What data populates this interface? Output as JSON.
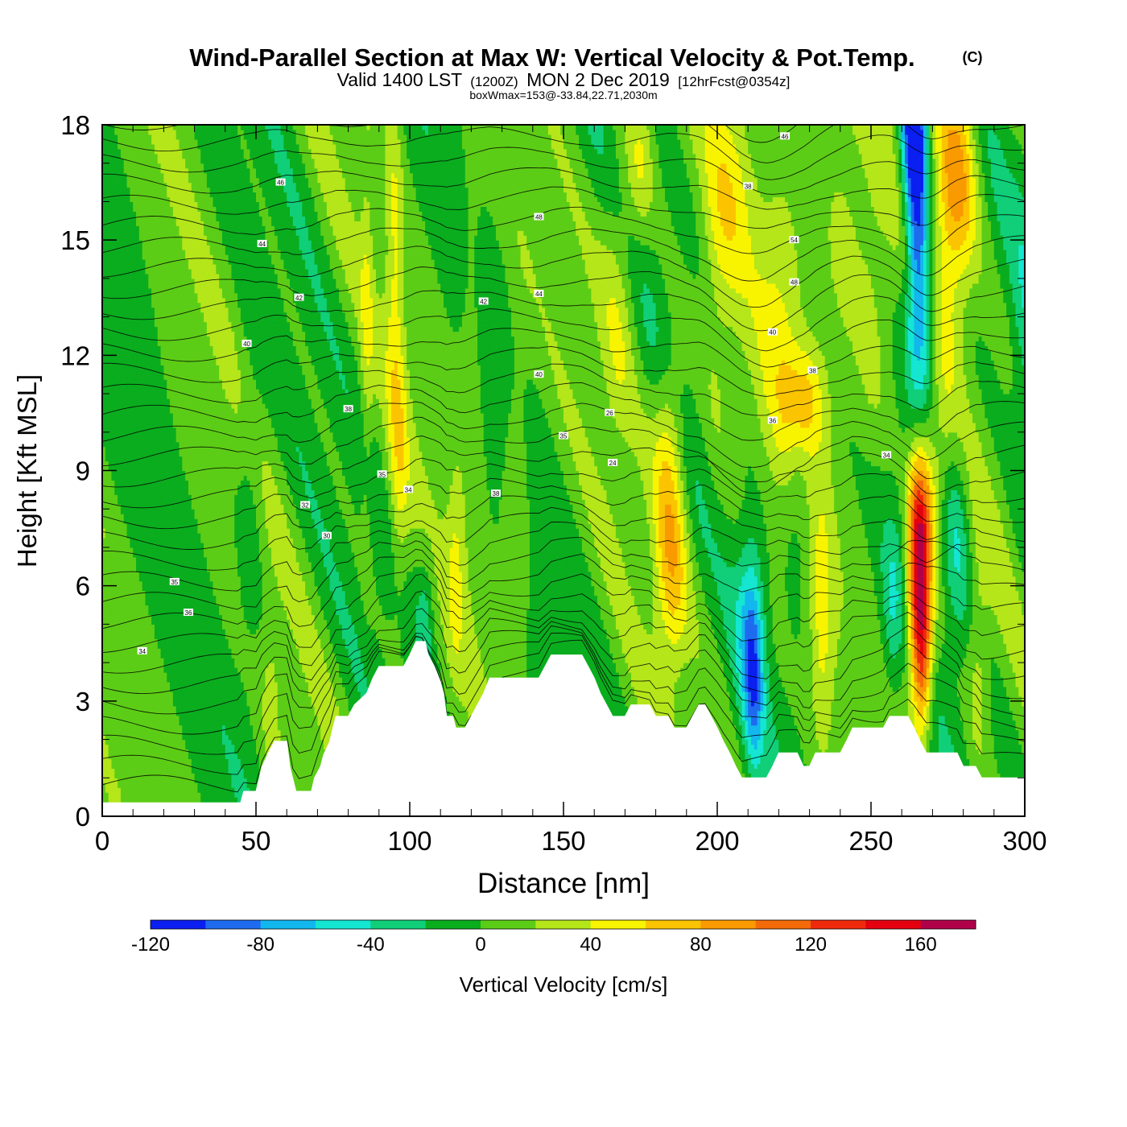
{
  "title": {
    "main": "Wind-Parallel Section at Max W: Vertical Velocity & Pot.Temp.",
    "copyright": "(C)",
    "valid_prefix": "Valid 1400 LST",
    "valid_utc": "(1200Z)",
    "valid_date": "MON 2 Dec 2019",
    "forecast": "[12hrFcst@0354z]",
    "box_info": "boxWmax=153@-33.84,22.71,2030m"
  },
  "chart_data": {
    "type": "heatmap",
    "xlabel": "Distance [nm]",
    "ylabel": "Height [Kft MSL]",
    "xlim": [
      0,
      300
    ],
    "ylim": [
      0,
      18
    ],
    "x_ticks": [
      "0",
      "50",
      "100",
      "150",
      "200",
      "250",
      "300"
    ],
    "y_ticks": [
      "0",
      "3",
      "6",
      "9",
      "12",
      "15",
      "18"
    ],
    "colorbar": {
      "label": "Vertical Velocity [cm/s]",
      "tick_labels": [
        "-120",
        "-80",
        "-40",
        "0",
        "40",
        "80",
        "120",
        "160"
      ],
      "bounds": [
        -120,
        180
      ],
      "step": 20,
      "colors": [
        "#0a1ff0",
        "#1e6bf0",
        "#12b7ee",
        "#14e6d2",
        "#10cf78",
        "#0aad1e",
        "#5ccd16",
        "#b4e61a",
        "#f8f400",
        "#fbc400",
        "#f89a00",
        "#f46a08",
        "#ef2a0c",
        "#e4000f",
        "#b0004a"
      ]
    },
    "terrain": [
      [
        0,
        0.35
      ],
      [
        10,
        0.35
      ],
      [
        20,
        0.35
      ],
      [
        30,
        0.35
      ],
      [
        40,
        0.35
      ],
      [
        45,
        0.35
      ],
      [
        46,
        0.65
      ],
      [
        50,
        0.65
      ],
      [
        52,
        1.3
      ],
      [
        54,
        1.65
      ],
      [
        56,
        1.95
      ],
      [
        60,
        1.95
      ],
      [
        61,
        1.3
      ],
      [
        63,
        0.65
      ],
      [
        68,
        0.65
      ],
      [
        69,
        1.0
      ],
      [
        71,
        1.3
      ],
      [
        72,
        1.6
      ],
      [
        74,
        1.95
      ],
      [
        75,
        2.3
      ],
      [
        76,
        2.6
      ],
      [
        80,
        2.6
      ],
      [
        82,
        2.9
      ],
      [
        86,
        3.2
      ],
      [
        88,
        3.6
      ],
      [
        90,
        3.9
      ],
      [
        98,
        3.9
      ],
      [
        100,
        4.2
      ],
      [
        102,
        4.55
      ],
      [
        105,
        4.55
      ],
      [
        106,
        4.2
      ],
      [
        108,
        3.9
      ],
      [
        110,
        3.5
      ],
      [
        111,
        3.2
      ],
      [
        112,
        2.6
      ],
      [
        114,
        2.6
      ],
      [
        115,
        2.3
      ],
      [
        118,
        2.3
      ],
      [
        120,
        2.6
      ],
      [
        122,
        2.9
      ],
      [
        124,
        3.2
      ],
      [
        126,
        3.6
      ],
      [
        142,
        3.6
      ],
      [
        144,
        3.9
      ],
      [
        146,
        4.2
      ],
      [
        156,
        4.2
      ],
      [
        158,
        3.9
      ],
      [
        160,
        3.6
      ],
      [
        162,
        3.2
      ],
      [
        164,
        2.9
      ],
      [
        166,
        2.6
      ],
      [
        168,
        2.6
      ],
      [
        170,
        2.6
      ],
      [
        172,
        2.9
      ],
      [
        178,
        2.9
      ],
      [
        180,
        2.6
      ],
      [
        184,
        2.6
      ],
      [
        186,
        2.3
      ],
      [
        190,
        2.3
      ],
      [
        192,
        2.6
      ],
      [
        194,
        2.9
      ],
      [
        196,
        2.9
      ],
      [
        198,
        2.6
      ],
      [
        200,
        2.3
      ],
      [
        202,
        1.95
      ],
      [
        204,
        1.65
      ],
      [
        206,
        1.3
      ],
      [
        208,
        1.0
      ],
      [
        216,
        1.0
      ],
      [
        218,
        1.3
      ],
      [
        220,
        1.65
      ],
      [
        226,
        1.65
      ],
      [
        228,
        1.3
      ],
      [
        230,
        1.3
      ],
      [
        232,
        1.65
      ],
      [
        240,
        1.65
      ],
      [
        242,
        1.95
      ],
      [
        244,
        2.3
      ],
      [
        254,
        2.3
      ],
      [
        256,
        2.6
      ],
      [
        262,
        2.6
      ],
      [
        264,
        2.3
      ],
      [
        266,
        1.95
      ],
      [
        268,
        1.65
      ],
      [
        278,
        1.65
      ],
      [
        280,
        1.3
      ],
      [
        284,
        1.3
      ],
      [
        286,
        1.0
      ],
      [
        300,
        1.0
      ]
    ],
    "velocity_features": [
      {
        "x": 265.5,
        "z": 6.3,
        "w": 153,
        "sx": 2.6,
        "sz": 2.2
      },
      {
        "x": 267,
        "z": 4.0,
        "w": 70,
        "sx": 2.2,
        "sz": 1.4
      },
      {
        "x": 268.5,
        "z": 8.3,
        "w": 55,
        "sx": 3.5,
        "sz": 1.6
      },
      {
        "x": 265,
        "z": 16.0,
        "w": -105,
        "sx": 2.6,
        "sz": 2.8
      },
      {
        "x": 267.5,
        "z": 12.5,
        "w": -55,
        "sx": 3.2,
        "sz": 2.2
      },
      {
        "x": 263,
        "z": 18.0,
        "w": -85,
        "sx": 2.5,
        "sz": 1.4
      },
      {
        "x": 278,
        "z": 17.0,
        "w": 70,
        "sx": 5.0,
        "sz": 2.0
      },
      {
        "x": 275,
        "z": 14.5,
        "w": 30,
        "sx": 5.0,
        "sz": 2.5
      },
      {
        "x": 185,
        "z": 6.8,
        "w": 65,
        "sx": 3.8,
        "sz": 2.2
      },
      {
        "x": 184,
        "z": 10.2,
        "w": 35,
        "sx": 3.5,
        "sz": 1.5
      },
      {
        "x": 211,
        "z": 4.8,
        "w": -65,
        "sx": 3.0,
        "sz": 1.8
      },
      {
        "x": 212,
        "z": 3.0,
        "w": -40,
        "sx": 2.0,
        "sz": 1.5
      },
      {
        "x": 257,
        "z": 5.5,
        "w": -30,
        "sx": 2.5,
        "sz": 1.5
      },
      {
        "x": 234,
        "z": 5.0,
        "w": 35,
        "sx": 2.5,
        "sz": 2.5
      },
      {
        "x": 250,
        "z": 12.5,
        "w": 30,
        "sx": 5.0,
        "sz": 3.0
      },
      {
        "x": 222,
        "z": 13.5,
        "w": 35,
        "sx": 7.0,
        "sz": 3.5
      },
      {
        "x": 205,
        "z": 16.5,
        "w": 30,
        "sx": 5.0,
        "sz": 2.0
      },
      {
        "x": 240,
        "z": 15.0,
        "w": 30,
        "sx": 5.0,
        "sz": 3.0
      },
      {
        "x": 228,
        "z": 10.8,
        "w": 55,
        "sx": 5.0,
        "sz": 1.0
      },
      {
        "x": 278,
        "z": 7.5,
        "w": -35,
        "sx": 3.0,
        "sz": 2.0
      },
      {
        "x": 285,
        "z": 4.0,
        "w": 30,
        "sx": 2.5,
        "sz": 2.0
      },
      {
        "x": 226,
        "z": 9.0,
        "w": -25,
        "sx": 3.0,
        "sz": 2.5
      },
      {
        "x": 95,
        "z": 14.0,
        "w": 35,
        "sx": 2.0,
        "sz": 4.0
      },
      {
        "x": 97,
        "z": 9.0,
        "w": 30,
        "sx": 2.0,
        "sz": 2.5
      },
      {
        "x": 86,
        "z": 12.5,
        "w": 25,
        "sx": 1.5,
        "sz": 4.0
      },
      {
        "x": 105,
        "z": 5.3,
        "w": -30,
        "sx": 2.0,
        "sz": 1.2
      },
      {
        "x": 115,
        "z": 6.5,
        "w": 30,
        "sx": 2.0,
        "sz": 2.0
      },
      {
        "x": 120,
        "z": 13.0,
        "w": 20,
        "sx": 2.5,
        "sz": 4.0
      },
      {
        "x": 135,
        "z": 9.0,
        "w": 25,
        "sx": 3.0,
        "sz": 3.0
      },
      {
        "x": 168,
        "z": 14.0,
        "w": 30,
        "sx": 4.0,
        "sz": 3.0
      },
      {
        "x": 175,
        "z": 17.0,
        "w": 35,
        "sx": 3.0,
        "sz": 1.5
      },
      {
        "x": 200,
        "z": 13.0,
        "w": 20,
        "sx": 4.0,
        "sz": 4.0
      },
      {
        "x": 48,
        "z": 8.0,
        "w": -20,
        "sx": 3.0,
        "sz": 3.0
      },
      {
        "x": 55,
        "z": 3.0,
        "w": 20,
        "sx": 2.0,
        "sz": 1.5
      },
      {
        "x": 300,
        "z": 12.0,
        "w": -20,
        "sx": 3.0,
        "sz": 4.0
      }
    ],
    "theta_labels": [
      {
        "x": 13,
        "z": 4.3,
        "text": "34"
      },
      {
        "x": 23.5,
        "z": 6.1,
        "text": "35"
      },
      {
        "x": 28,
        "z": 5.3,
        "text": "36"
      },
      {
        "x": 66,
        "z": 8.1,
        "text": "32"
      },
      {
        "x": 73,
        "z": 7.3,
        "text": "30"
      },
      {
        "x": 80,
        "z": 10.6,
        "text": "38"
      },
      {
        "x": 91,
        "z": 8.9,
        "text": "35"
      },
      {
        "x": 99.5,
        "z": 8.5,
        "text": "34"
      },
      {
        "x": 128,
        "z": 8.4,
        "text": "38"
      },
      {
        "x": 150,
        "z": 9.9,
        "text": "35"
      },
      {
        "x": 166,
        "z": 9.2,
        "text": "24"
      },
      {
        "x": 165,
        "z": 10.5,
        "text": "26"
      },
      {
        "x": 142,
        "z": 11.5,
        "text": "40"
      },
      {
        "x": 142,
        "z": 13.6,
        "text": "44"
      },
      {
        "x": 142,
        "z": 15.6,
        "text": "48"
      },
      {
        "x": 47,
        "z": 12.3,
        "text": "40"
      },
      {
        "x": 64,
        "z": 13.5,
        "text": "42"
      },
      {
        "x": 52,
        "z": 14.9,
        "text": "44"
      },
      {
        "x": 58,
        "z": 16.5,
        "text": "46"
      },
      {
        "x": 124,
        "z": 13.4,
        "text": "42"
      },
      {
        "x": 218,
        "z": 12.6,
        "text": "40"
      },
      {
        "x": 225,
        "z": 13.9,
        "text": "48"
      },
      {
        "x": 225,
        "z": 15.0,
        "text": "54"
      },
      {
        "x": 210,
        "z": 16.4,
        "text": "38"
      },
      {
        "x": 222,
        "z": 17.7,
        "text": "46"
      },
      {
        "x": 231,
        "z": 11.6,
        "text": "38"
      },
      {
        "x": 218,
        "z": 10.3,
        "text": "36"
      },
      {
        "x": 255,
        "z": 9.4,
        "text": "34"
      }
    ]
  }
}
